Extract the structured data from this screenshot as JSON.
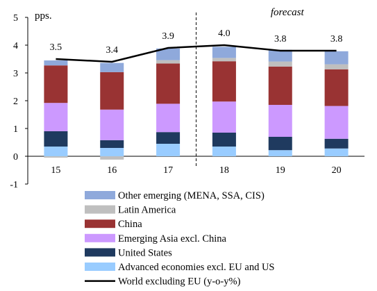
{
  "chart_data": {
    "type": "bar",
    "stacked": true,
    "categories": [
      "15",
      "16",
      "17",
      "18",
      "19",
      "20"
    ],
    "ylabel": "pps.",
    "ylim": [
      -1,
      5
    ],
    "yticks": [
      -1,
      0,
      1,
      2,
      3,
      4,
      5
    ],
    "forecast_label": "forecast",
    "forecast_from": "18",
    "series": [
      {
        "name": "Advanced economies excl. EU and US",
        "color": "#99ccff",
        "values": [
          0.35,
          0.3,
          0.45,
          0.35,
          0.22,
          0.28
        ]
      },
      {
        "name": "United States",
        "color": "#1f3a5f",
        "values": [
          0.55,
          0.28,
          0.42,
          0.5,
          0.48,
          0.35
        ]
      },
      {
        "name": "Emerging Asia excl. China",
        "color": "#cc99ff",
        "values": [
          1.02,
          1.1,
          1.02,
          1.12,
          1.15,
          1.18
        ]
      },
      {
        "name": "China",
        "color": "#993333",
        "values": [
          1.35,
          1.35,
          1.45,
          1.45,
          1.38,
          1.32
        ]
      },
      {
        "name": "Latin America",
        "color": "#bfbfbf",
        "values": [
          -0.05,
          -0.12,
          0.12,
          0.12,
          0.18,
          0.18
        ]
      },
      {
        "name": "Other emerging (MENA, SSA, CIS)",
        "color": "#8fa9db",
        "values": [
          0.18,
          0.33,
          0.42,
          0.4,
          0.42,
          0.47
        ]
      }
    ],
    "line": {
      "name": "World excluding EU (y-o-y%)",
      "color": "#000000",
      "values": [
        3.5,
        3.4,
        3.9,
        4.0,
        3.8,
        3.8
      ]
    },
    "data_labels": [
      "3.5",
      "3.4",
      "3.9",
      "4.0",
      "3.8",
      "3.8"
    ]
  }
}
